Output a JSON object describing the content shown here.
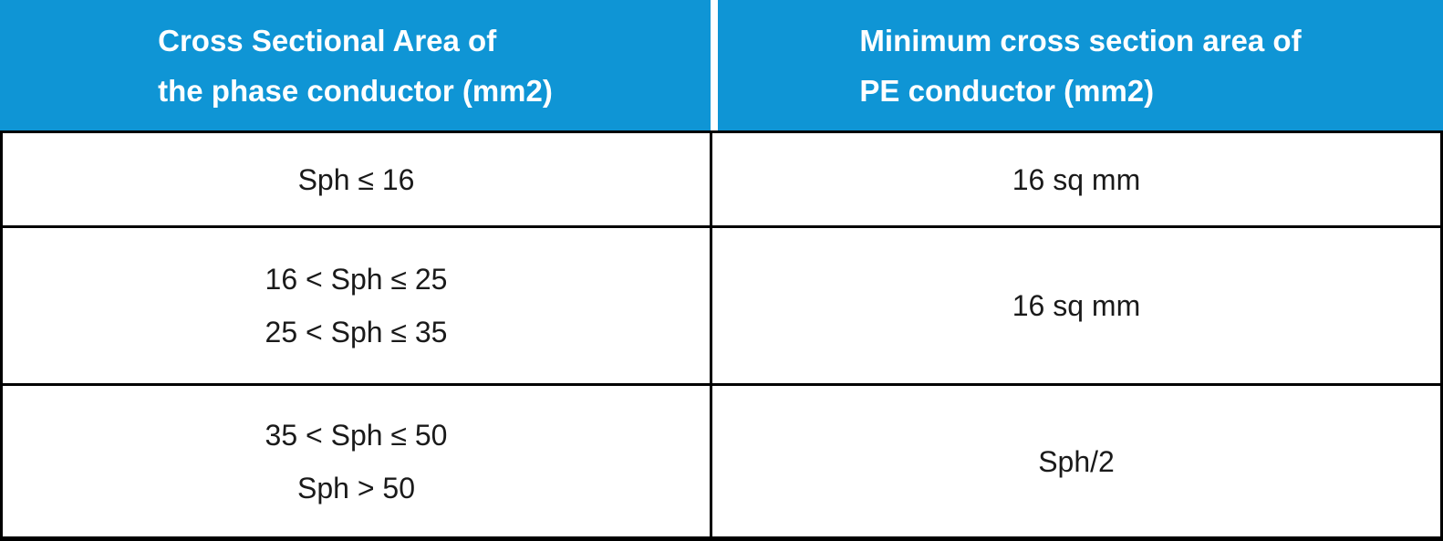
{
  "colors": {
    "header_bg": "#0f95d5",
    "header_text": "#ffffff",
    "body_text": "#1a1a1a",
    "grid_line": "#000000"
  },
  "table": {
    "header": {
      "phase_col_line1": "Cross Sectional Area of",
      "phase_col_line2": "the phase conductor (mm2)",
      "pe_col_line1": "Minimum cross section area of",
      "pe_col_line2": "PE conductor (mm2)"
    },
    "rows": [
      {
        "phase": [
          "Sph ≤ 16"
        ],
        "pe": "16 sq mm"
      },
      {
        "phase": [
          "16 < Sph ≤ 25",
          "25 < Sph ≤ 35"
        ],
        "pe": "16 sq mm"
      },
      {
        "phase": [
          "35 < Sph ≤ 50",
          "Sph > 50"
        ],
        "pe": "Sph/2"
      }
    ]
  }
}
